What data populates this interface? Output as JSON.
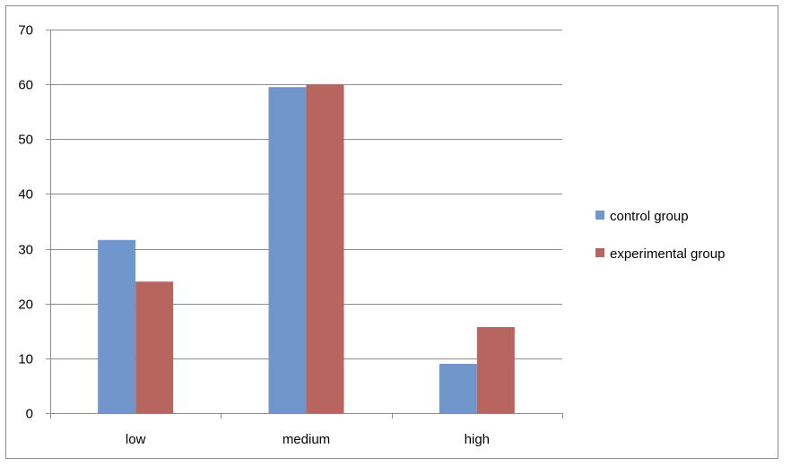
{
  "chart_data": {
    "type": "bar",
    "categories": [
      "low",
      "medium",
      "high"
    ],
    "series": [
      {
        "name": "control group",
        "values": [
          31.6,
          59.5,
          9.0
        ],
        "color": "#7096cb"
      },
      {
        "name": "experimental group",
        "values": [
          24.0,
          60.0,
          15.7
        ],
        "color": "#b8645f"
      }
    ],
    "ylim": [
      0,
      70
    ],
    "yticks": [
      0,
      10,
      20,
      30,
      40,
      50,
      60,
      70
    ],
    "grid": true,
    "legend_position": "right",
    "title": "",
    "xlabel": "",
    "ylabel": ""
  }
}
